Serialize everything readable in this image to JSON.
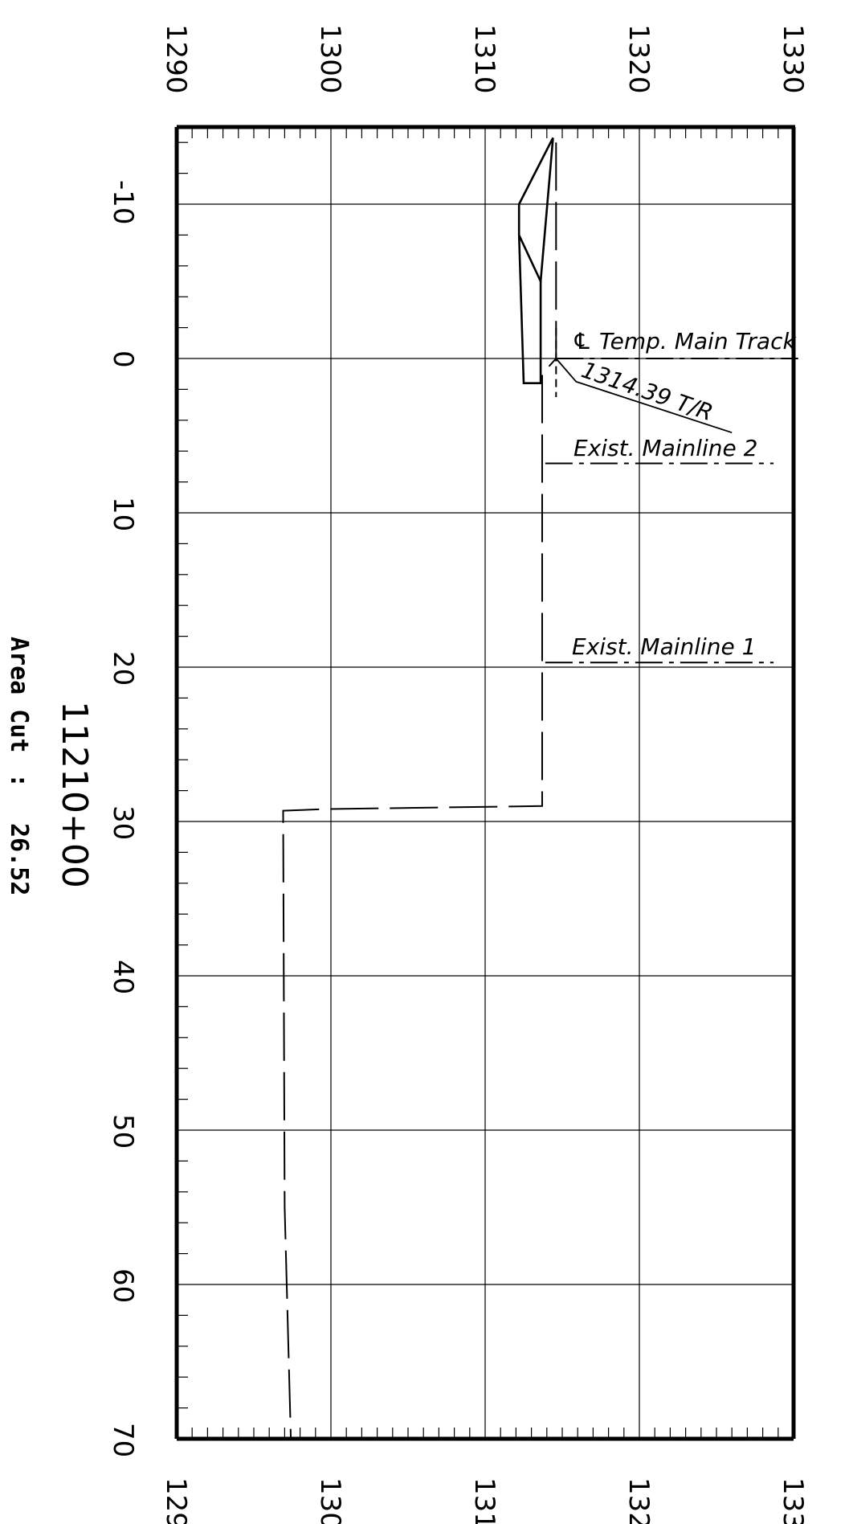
{
  "drawing": {
    "station": "11210+00",
    "area_label": "Area Cut",
    "area_sep": ":",
    "area_value": "26.52"
  },
  "elevation_axis": {
    "min": 1290,
    "max": 1330,
    "ticks": [
      1290,
      1300,
      1310,
      1320,
      1330
    ],
    "tick_labels": [
      "1290",
      "1300",
      "1310",
      "1320",
      "1330"
    ]
  },
  "offset_axis": {
    "min": -15,
    "max": 70,
    "ticks": [
      -10,
      0,
      10,
      20,
      30,
      40,
      50,
      60,
      70
    ],
    "tick_labels": [
      "-10",
      "0",
      "10",
      "20",
      "30",
      "40",
      "50",
      "60",
      "70"
    ]
  },
  "annotations": {
    "temp_main": "℄ Temp. Main Track",
    "top_of_rail": "1314.39 T/R",
    "exist_ml2": "Exist. Mainline 2",
    "exist_ml1": "Exist. Mainline 1"
  },
  "profiles": {
    "proposed_section": [
      [
        1314.4,
        -14.3
      ],
      [
        1312.2,
        -10
      ],
      [
        1312.2,
        -8
      ],
      [
        1313.6,
        -5
      ],
      [
        1314.4,
        -14.3
      ]
    ],
    "proposed_body": [
      [
        1312.2,
        -8
      ],
      [
        1312.5,
        1.6
      ],
      [
        1313.6,
        1.6
      ],
      [
        1313.6,
        -5
      ]
    ],
    "existing_ground": [
      [
        1314.6,
        -14
      ],
      [
        1314.6,
        0
      ],
      [
        1313.7,
        1
      ],
      [
        1313.7,
        29
      ],
      [
        1299.6,
        29.2
      ],
      [
        1296.9,
        29.3
      ],
      [
        1297.0,
        55
      ],
      [
        1297.4,
        70
      ]
    ],
    "ml2_line_elev": [
      1313.9,
      1328.7
    ],
    "ml2_offset": 6.8,
    "ml1_line_elev": [
      1313.9,
      1328.7
    ],
    "ml1_offset": 19.7,
    "temp_line_elev": [
      1314.6,
      1330.3
    ],
    "temp_offset": 0,
    "tr_leader": [
      [
        1314.6,
        0
      ],
      [
        1315.9,
        1.5
      ],
      [
        1326.0,
        4.8
      ]
    ]
  }
}
